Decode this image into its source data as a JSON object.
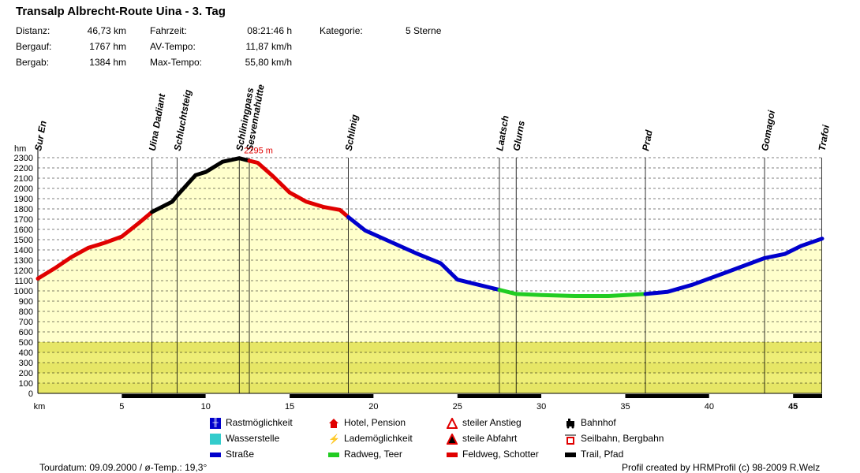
{
  "header": {
    "title": "Transalp Albrecht-Route Uina  - 3. Tag",
    "stats": [
      {
        "label": "Distanz:",
        "value": "46,73 km"
      },
      {
        "label": "Bergauf:",
        "value": "1767 hm"
      },
      {
        "label": "Bergab:",
        "value": "1384 hm"
      },
      {
        "label": "Fahrzeit:",
        "value": "08:21:46 h"
      },
      {
        "label": "AV-Tempo:",
        "value": "11,87 km/h"
      },
      {
        "label": "Max-Tempo:",
        "value": "55,80 km/h"
      },
      {
        "label": "Kategorie:",
        "value": "5 Sterne"
      }
    ]
  },
  "chart_data": {
    "type": "area",
    "xlabel": "km",
    "ylabel": "hm",
    "xlim": [
      0,
      46.73
    ],
    "ylim": [
      0,
      2300
    ],
    "x_ticks": [
      {
        "value": 0,
        "label": "km"
      },
      {
        "value": 5,
        "label": "5"
      },
      {
        "value": 10,
        "label": "10"
      },
      {
        "value": 15,
        "label": "15"
      },
      {
        "value": 20,
        "label": "20"
      },
      {
        "value": 25,
        "label": "25"
      },
      {
        "value": 30,
        "label": "30"
      },
      {
        "value": 35,
        "label": "35"
      },
      {
        "value": 40,
        "label": "40"
      },
      {
        "value": 45,
        "label": "45"
      }
    ],
    "y_ticks": [
      0,
      100,
      200,
      300,
      400,
      500,
      600,
      700,
      800,
      900,
      1000,
      1100,
      1200,
      1300,
      1400,
      1500,
      1600,
      1700,
      1800,
      1900,
      2000,
      2100,
      2200,
      2300
    ],
    "grid": true,
    "max_label": "2295 m",
    "waypoints": [
      {
        "name": "Sur En",
        "km": 0
      },
      {
        "name": "Uina Dadiant",
        "km": 6.8
      },
      {
        "name": "Schluchtsteig",
        "km": 8.3
      },
      {
        "name": "Schliningpass",
        "km": 12.0
      },
      {
        "name": "Sesvennahütte",
        "km": 12.6
      },
      {
        "name": "Schlinig",
        "km": 18.5
      },
      {
        "name": "Laatsch",
        "km": 27.5
      },
      {
        "name": "Glurns",
        "km": 28.5
      },
      {
        "name": "Prad",
        "km": 36.2
      },
      {
        "name": "Gomagoi",
        "km": 43.3
      },
      {
        "name": "Trafoi",
        "km": 46.7
      }
    ],
    "series": [
      {
        "type": "Feldweg, Schotter",
        "color": "#e00000",
        "x": [
          0,
          1,
          2,
          3,
          4,
          5,
          6,
          6.8
        ],
        "y": [
          1120,
          1220,
          1330,
          1420,
          1470,
          1530,
          1660,
          1770
        ]
      },
      {
        "type": "Trail, Pfad",
        "color": "#000000",
        "x": [
          6.8,
          8,
          8.3,
          9.4,
          10,
          11,
          12,
          12.6
        ],
        "y": [
          1770,
          1870,
          1930,
          2130,
          2160,
          2260,
          2295,
          2270
        ]
      },
      {
        "type": "Feldweg, Schotter",
        "color": "#e00000",
        "x": [
          12.6,
          13.1,
          14,
          15,
          16,
          17,
          18,
          18.5
        ],
        "y": [
          2270,
          2250,
          2120,
          1960,
          1870,
          1820,
          1790,
          1720
        ]
      },
      {
        "type": "Straße",
        "color": "#0000cc",
        "x": [
          18.5,
          19.5,
          21,
          22.5,
          24,
          25,
          26,
          27.5
        ],
        "y": [
          1720,
          1590,
          1480,
          1370,
          1270,
          1110,
          1070,
          1010
        ]
      },
      {
        "type": "Radweg, Teer",
        "color": "#22cc22",
        "x": [
          27.5,
          28.5,
          30,
          32,
          34,
          36.2
        ],
        "y": [
          1010,
          970,
          960,
          950,
          950,
          970
        ]
      },
      {
        "type": "Straße",
        "color": "#0000cc",
        "x": [
          36.2,
          37.5,
          39,
          41,
          43.3,
          44.5,
          45.5,
          46.73
        ],
        "y": [
          970,
          990,
          1060,
          1180,
          1320,
          1360,
          1440,
          1510
        ]
      }
    ]
  },
  "legend": [
    {
      "label": "Rastmöglichkeit",
      "icon": "fork-knife-icon"
    },
    {
      "label": "Wasserstelle",
      "icon": "water-tap-icon"
    },
    {
      "label": "Straße",
      "icon": "road-blue-icon",
      "color": "#0000cc"
    },
    {
      "label": "Hotel, Pension",
      "icon": "house-icon"
    },
    {
      "label": "Lademöglichkeit",
      "icon": "plug-icon"
    },
    {
      "label": "Radweg, Teer",
      "icon": "bikepath-green-icon",
      "color": "#22cc22"
    },
    {
      "label": "steiler Anstieg",
      "icon": "steep-up-icon"
    },
    {
      "label": "steile Abfahrt",
      "icon": "steep-down-icon"
    },
    {
      "label": "Feldweg, Schotter",
      "icon": "gravel-red-icon",
      "color": "#e00000"
    },
    {
      "label": "Bahnhof",
      "icon": "train-icon"
    },
    {
      "label": "Seilbahn, Bergbahn",
      "icon": "cablecar-icon"
    },
    {
      "label": "Trail, Pfad",
      "icon": "trail-black-icon",
      "color": "#000000"
    }
  ],
  "footer": {
    "left": "Tourdatum: 09.09.2000  /  ø-Temp.: 19,3°",
    "right": "Profil created by HRMProfil (c) 98-2009 R.Welz"
  }
}
